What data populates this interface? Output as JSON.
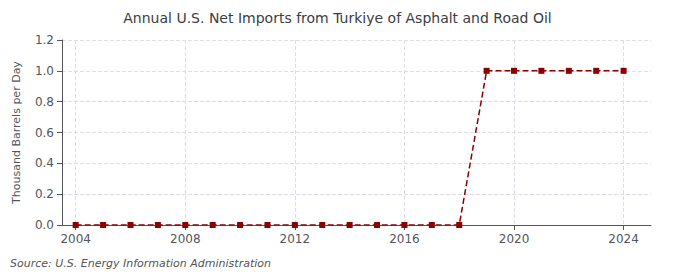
{
  "chart_data": {
    "type": "line",
    "title": "Annual U.S. Net Imports from Turkiye of Asphalt and Road Oil",
    "ylabel": "Thousand Barrels per Day",
    "annotation": "Source: U.S. Energy Information Administration",
    "x": [
      2004,
      2005,
      2006,
      2007,
      2008,
      2009,
      2010,
      2011,
      2012,
      2013,
      2014,
      2015,
      2016,
      2017,
      2018,
      2019,
      2020,
      2021,
      2022,
      2023,
      2024
    ],
    "values": [
      0,
      0,
      0,
      0,
      0,
      0,
      0,
      0,
      0,
      0,
      0,
      0,
      0,
      0,
      0,
      1,
      1,
      1,
      1,
      1,
      1
    ],
    "xlim": [
      2003.5,
      2025
    ],
    "xticks": [
      2004,
      2008,
      2012,
      2016,
      2020,
      2024
    ],
    "ylim": [
      0.0,
      1.2
    ],
    "yticks": [
      {
        "value": 0,
        "label": "0.0"
      },
      0.2,
      0.4,
      0.6,
      0.8,
      {
        "value": 1,
        "label": "1.0"
      },
      1.2
    ],
    "color": "#8B0000",
    "marker": "square",
    "line_style": "dashed",
    "grid": true
  }
}
